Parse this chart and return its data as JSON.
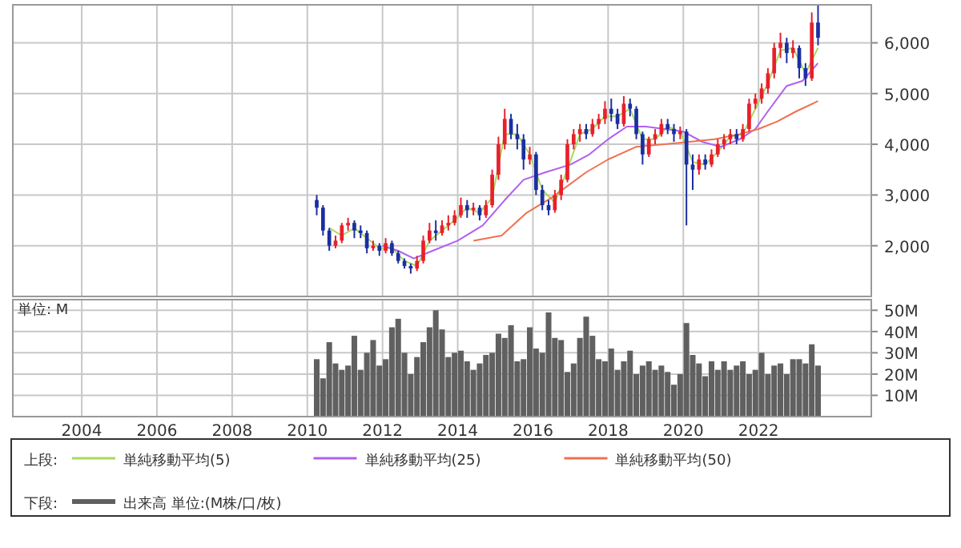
{
  "chart_data": [
    {
      "type": "candlestick",
      "legend_title": "上段:",
      "legend": "bottom",
      "grid": true,
      "tick_labels": "y",
      "xlim": [
        "2002-03",
        "2025-01"
      ],
      "xticks": [
        "2004",
        "2006",
        "2008",
        "2010",
        "2012",
        "2014",
        "2016",
        "2018",
        "2020",
        "2022"
      ],
      "ylim": [
        1000,
        6750
      ],
      "yticks": [
        {
          "value": 2000,
          "label": "2,000"
        },
        {
          "value": 3000,
          "label": "3,000"
        },
        {
          "value": 4000,
          "label": "4,000"
        },
        {
          "value": 5000,
          "label": "5,000"
        },
        {
          "value": 6000,
          "label": "6,000"
        }
      ],
      "x": [
        "2010-04",
        "2010-06",
        "2010-08",
        "2010-10",
        "2010-12",
        "2011-02",
        "2011-04",
        "2011-06",
        "2011-08",
        "2011-10",
        "2011-12",
        "2012-02",
        "2012-04",
        "2012-06",
        "2012-08",
        "2012-10",
        "2012-12",
        "2013-02",
        "2013-04",
        "2013-06",
        "2013-08",
        "2013-10",
        "2013-12",
        "2014-02",
        "2014-04",
        "2014-06",
        "2014-08",
        "2014-10",
        "2014-12",
        "2015-02",
        "2015-04",
        "2015-06",
        "2015-08",
        "2015-10",
        "2015-12",
        "2016-02",
        "2016-04",
        "2016-06",
        "2016-08",
        "2016-10",
        "2016-12",
        "2017-02",
        "2017-04",
        "2017-06",
        "2017-08",
        "2017-10",
        "2017-12",
        "2018-02",
        "2018-04",
        "2018-06",
        "2018-08",
        "2018-10",
        "2018-12",
        "2019-02",
        "2019-04",
        "2019-06",
        "2019-08",
        "2019-10",
        "2019-12",
        "2020-02",
        "2020-04",
        "2020-06",
        "2020-08",
        "2020-10",
        "2020-12",
        "2021-02",
        "2021-04",
        "2021-06",
        "2021-08",
        "2021-10",
        "2021-12",
        "2022-02",
        "2022-04",
        "2022-06",
        "2022-08",
        "2022-10",
        "2022-12",
        "2023-02",
        "2023-04",
        "2023-06",
        "2023-08"
      ],
      "ohlc": [
        [
          2900,
          3000,
          2600,
          2750
        ],
        [
          2750,
          2800,
          2200,
          2300
        ],
        [
          2300,
          2350,
          1900,
          2000
        ],
        [
          2000,
          2200,
          1950,
          2100
        ],
        [
          2100,
          2450,
          2050,
          2400
        ],
        [
          2400,
          2550,
          2300,
          2450
        ],
        [
          2450,
          2500,
          2150,
          2300
        ],
        [
          2300,
          2400,
          2150,
          2250
        ],
        [
          2250,
          2300,
          1850,
          1950
        ],
        [
          1950,
          2100,
          1900,
          2000
        ],
        [
          2000,
          2050,
          1800,
          1900
        ],
        [
          1900,
          2150,
          1850,
          2050
        ],
        [
          2050,
          2100,
          1800,
          1850
        ],
        [
          1850,
          1900,
          1650,
          1700
        ],
        [
          1700,
          1750,
          1550,
          1600
        ],
        [
          1600,
          1650,
          1450,
          1550
        ],
        [
          1550,
          1800,
          1500,
          1700
        ],
        [
          1700,
          2200,
          1650,
          2100
        ],
        [
          2100,
          2450,
          2050,
          2300
        ],
        [
          2300,
          2500,
          2100,
          2250
        ],
        [
          2250,
          2500,
          2200,
          2400
        ],
        [
          2400,
          2600,
          2300,
          2450
        ],
        [
          2450,
          2700,
          2400,
          2600
        ],
        [
          2600,
          2950,
          2550,
          2800
        ],
        [
          2800,
          2900,
          2550,
          2700
        ],
        [
          2700,
          2850,
          2600,
          2750
        ],
        [
          2750,
          2800,
          2500,
          2600
        ],
        [
          2600,
          2900,
          2550,
          2800
        ],
        [
          2800,
          3500,
          2750,
          3400
        ],
        [
          3400,
          4150,
          3300,
          4000
        ],
        [
          4000,
          4700,
          3900,
          4500
        ],
        [
          4500,
          4600,
          4100,
          4200
        ],
        [
          4200,
          4400,
          3900,
          4100
        ],
        [
          4100,
          4200,
          3500,
          3700
        ],
        [
          3700,
          3950,
          3600,
          3800
        ],
        [
          3800,
          3850,
          3000,
          3100
        ],
        [
          3100,
          3200,
          2700,
          2800
        ],
        [
          2800,
          2900,
          2600,
          2700
        ],
        [
          2700,
          3100,
          2650,
          3000
        ],
        [
          3000,
          3400,
          2900,
          3300
        ],
        [
          3300,
          4100,
          3250,
          4000
        ],
        [
          4000,
          4300,
          3900,
          4200
        ],
        [
          4200,
          4400,
          4050,
          4300
        ],
        [
          4300,
          4400,
          4100,
          4200
        ],
        [
          4200,
          4500,
          4150,
          4400
        ],
        [
          4400,
          4600,
          4300,
          4500
        ],
        [
          4500,
          4850,
          4400,
          4700
        ],
        [
          4700,
          4900,
          4450,
          4600
        ],
        [
          4600,
          4700,
          4300,
          4400
        ],
        [
          4400,
          4950,
          4350,
          4800
        ],
        [
          4800,
          4900,
          4550,
          4700
        ],
        [
          4700,
          4750,
          4100,
          4200
        ],
        [
          4200,
          4250,
          3600,
          3800
        ],
        [
          3800,
          4150,
          3750,
          4100
        ],
        [
          4100,
          4300,
          4000,
          4200
        ],
        [
          4200,
          4500,
          4150,
          4400
        ],
        [
          4400,
          4500,
          4200,
          4300
        ],
        [
          4300,
          4400,
          4050,
          4200
        ],
        [
          4200,
          4350,
          4100,
          4250
        ],
        [
          4250,
          4300,
          2400,
          3600
        ],
        [
          3600,
          3800,
          3100,
          3500
        ],
        [
          3500,
          3800,
          3400,
          3700
        ],
        [
          3700,
          3800,
          3500,
          3600
        ],
        [
          3600,
          3900,
          3550,
          3800
        ],
        [
          3800,
          4100,
          3750,
          4000
        ],
        [
          4000,
          4200,
          3900,
          4100
        ],
        [
          4100,
          4300,
          4000,
          4200
        ],
        [
          4200,
          4300,
          4000,
          4100
        ],
        [
          4100,
          4400,
          4050,
          4300
        ],
        [
          4300,
          4900,
          4250,
          4800
        ],
        [
          4800,
          5000,
          4700,
          4900
        ],
        [
          4900,
          5200,
          4800,
          5100
        ],
        [
          5100,
          5500,
          5000,
          5400
        ],
        [
          5400,
          6000,
          5300,
          5900
        ],
        [
          5900,
          6200,
          5700,
          6000
        ],
        [
          6000,
          6100,
          5600,
          5800
        ],
        [
          5800,
          6050,
          5700,
          5900
        ],
        [
          5900,
          5950,
          5300,
          5500
        ],
        [
          5500,
          5600,
          5150,
          5300
        ],
        [
          5300,
          6600,
          5250,
          6400
        ],
        [
          6400,
          6750,
          5950,
          6100
        ]
      ],
      "colors": [
        "#1a2fa0",
        "#1a2fa0",
        "#1a2fa0",
        "#e8202a",
        "#e8202a",
        "#e8202a",
        "#1a2fa0",
        "#1a2fa0",
        "#1a2fa0",
        "#e8202a",
        "#1a2fa0",
        "#e8202a",
        "#1a2fa0",
        "#1a2fa0",
        "#1a2fa0",
        "#1a2fa0",
        "#e8202a",
        "#e8202a",
        "#e8202a",
        "#1a2fa0",
        "#e8202a",
        "#e8202a",
        "#e8202a",
        "#e8202a",
        "#1a2fa0",
        "#e8202a",
        "#1a2fa0",
        "#e8202a",
        "#e8202a",
        "#e8202a",
        "#e8202a",
        "#1a2fa0",
        "#1a2fa0",
        "#1a2fa0",
        "#e8202a",
        "#1a2fa0",
        "#1a2fa0",
        "#1a2fa0",
        "#e8202a",
        "#e8202a",
        "#e8202a",
        "#e8202a",
        "#e8202a",
        "#1a2fa0",
        "#e8202a",
        "#e8202a",
        "#e8202a",
        "#1a2fa0",
        "#1a2fa0",
        "#e8202a",
        "#1a2fa0",
        "#1a2fa0",
        "#1a2fa0",
        "#e8202a",
        "#e8202a",
        "#e8202a",
        "#1a2fa0",
        "#1a2fa0",
        "#e8202a",
        "#1a2fa0",
        "#1a2fa0",
        "#e8202a",
        "#1a2fa0",
        "#e8202a",
        "#e8202a",
        "#e8202a",
        "#e8202a",
        "#1a2fa0",
        "#e8202a",
        "#e8202a",
        "#e8202a",
        "#e8202a",
        "#e8202a",
        "#e8202a",
        "#e8202a",
        "#1a2fa0",
        "#e8202a",
        "#1a2fa0",
        "#1a2fa0",
        "#e8202a",
        "#1a2fa0"
      ],
      "series": [
        {
          "name": "単純移動平均(5)",
          "type": "line",
          "color": "#a8d860",
          "x": [
            "2010-08",
            "2010-12",
            "2011-04",
            "2011-08",
            "2011-12",
            "2012-04",
            "2012-08",
            "2012-12",
            "2013-04",
            "2013-08",
            "2013-12",
            "2014-04",
            "2014-08",
            "2014-12",
            "2015-04",
            "2015-08",
            "2015-12",
            "2016-04",
            "2016-08",
            "2016-12",
            "2017-04",
            "2017-08",
            "2017-12",
            "2018-04",
            "2018-08",
            "2018-12",
            "2019-04",
            "2019-08",
            "2019-12",
            "2020-04",
            "2020-08",
            "2020-12",
            "2021-04",
            "2021-08",
            "2021-12",
            "2022-04",
            "2022-08",
            "2022-12",
            "2023-04",
            "2023-08"
          ],
          "values": [
            2350,
            2200,
            2350,
            2150,
            1950,
            1950,
            1700,
            1600,
            2100,
            2300,
            2500,
            2750,
            2650,
            2950,
            4200,
            4200,
            3800,
            3100,
            2850,
            3500,
            4200,
            4300,
            4550,
            4550,
            4700,
            4100,
            4100,
            4350,
            4250,
            3650,
            3600,
            3850,
            4150,
            4200,
            4700,
            5200,
            5850,
            5900,
            5400,
            5900
          ]
        },
        {
          "name": "単純移動平均(25)",
          "type": "line",
          "color": "#b060f0",
          "x": [
            "2012-01",
            "2012-06",
            "2012-11",
            "2013-05",
            "2014-01",
            "2014-09",
            "2015-04",
            "2015-10",
            "2016-05",
            "2017-01",
            "2017-07",
            "2018-01",
            "2018-07",
            "2019-01",
            "2019-07",
            "2020-01",
            "2020-07",
            "2021-01",
            "2021-07",
            "2021-12",
            "2022-04",
            "2022-10",
            "2023-03",
            "2023-08"
          ],
          "values": [
            2000,
            1900,
            1750,
            1900,
            2100,
            2400,
            2900,
            3300,
            3450,
            3600,
            3800,
            4100,
            4350,
            4350,
            4300,
            4250,
            4050,
            3950,
            4100,
            4300,
            4650,
            5150,
            5250,
            5600
          ]
        },
        {
          "name": "単純移動平均(50)",
          "type": "line",
          "color": "#f07050",
          "x": [
            "2014-06",
            "2015-03",
            "2015-11",
            "2016-07",
            "2017-06",
            "2018-01",
            "2018-10",
            "2019-07",
            "2020-03",
            "2020-11",
            "2021-07",
            "2022-01",
            "2022-07",
            "2023-01",
            "2023-08"
          ],
          "values": [
            2100,
            2200,
            2650,
            2950,
            3450,
            3700,
            3950,
            4000,
            4050,
            4100,
            4200,
            4300,
            4450,
            4650,
            4850
          ]
        }
      ]
    },
    {
      "type": "bar",
      "ylabel": "単位: M",
      "legend_title": "下段:",
      "legend": "bottom",
      "grid": true,
      "xlim": [
        "2002-03",
        "2025-01"
      ],
      "xticks": [
        "2004",
        "2006",
        "2008",
        "2010",
        "2012",
        "2014",
        "2016",
        "2018",
        "2020",
        "2022"
      ],
      "ylim": [
        0,
        55
      ],
      "yticks": [
        {
          "value": 10,
          "label": "10M"
        },
        {
          "value": 20,
          "label": "20M"
        },
        {
          "value": 30,
          "label": "30M"
        },
        {
          "value": 40,
          "label": "40M"
        },
        {
          "value": 50,
          "label": "50M"
        }
      ],
      "x": [
        "2010-04",
        "2010-06",
        "2010-08",
        "2010-10",
        "2010-12",
        "2011-02",
        "2011-04",
        "2011-06",
        "2011-08",
        "2011-10",
        "2011-12",
        "2012-02",
        "2012-04",
        "2012-06",
        "2012-08",
        "2012-10",
        "2012-12",
        "2013-02",
        "2013-04",
        "2013-06",
        "2013-08",
        "2013-10",
        "2013-12",
        "2014-02",
        "2014-04",
        "2014-06",
        "2014-08",
        "2014-10",
        "2014-12",
        "2015-02",
        "2015-04",
        "2015-06",
        "2015-08",
        "2015-10",
        "2015-12",
        "2016-02",
        "2016-04",
        "2016-06",
        "2016-08",
        "2016-10",
        "2016-12",
        "2017-02",
        "2017-04",
        "2017-06",
        "2017-08",
        "2017-10",
        "2017-12",
        "2018-02",
        "2018-04",
        "2018-06",
        "2018-08",
        "2018-10",
        "2018-12",
        "2019-02",
        "2019-04",
        "2019-06",
        "2019-08",
        "2019-10",
        "2019-12",
        "2020-02",
        "2020-04",
        "2020-06",
        "2020-08",
        "2020-10",
        "2020-12",
        "2021-02",
        "2021-04",
        "2021-06",
        "2021-08",
        "2021-10",
        "2021-12",
        "2022-02",
        "2022-04",
        "2022-06",
        "2022-08",
        "2022-10",
        "2022-12",
        "2023-02",
        "2023-04",
        "2023-06",
        "2023-08"
      ],
      "series": [
        {
          "name": "出来高 単位:(M株/口/枚)",
          "color": "#606060",
          "values": [
            27,
            18,
            35,
            25,
            22,
            24,
            38,
            22,
            30,
            36,
            24,
            27,
            42,
            46,
            30,
            20,
            28,
            35,
            42,
            50,
            41,
            28,
            30,
            31,
            26,
            22,
            25,
            29,
            30,
            39,
            37,
            43,
            26,
            27,
            42,
            32,
            30,
            49,
            37,
            36,
            21,
            25,
            37,
            47,
            38,
            27,
            26,
            32,
            22,
            26,
            31,
            20,
            24,
            26,
            22,
            24,
            21,
            15,
            20,
            44,
            29,
            25,
            19,
            26,
            22,
            26,
            22,
            24,
            26,
            20,
            22,
            30,
            20,
            24,
            25,
            20,
            27,
            27,
            25,
            34,
            24
          ]
        }
      ]
    }
  ]
}
